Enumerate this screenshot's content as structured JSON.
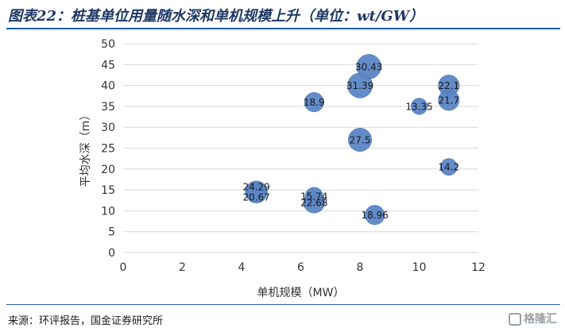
{
  "title": "图表22：桩基单位用量随水深和单机规模上升（单位：wt/GW）",
  "source": "来源：环评报告，国金证券研究所",
  "watermark": "格隆汇",
  "colors": {
    "bubble": "#5b86c5",
    "grid": "#d9d9d9",
    "title": "#1f3864",
    "rule": "#1f5fa6"
  },
  "chart_data": {
    "type": "scatter",
    "xlabel": "单机规模（MW）",
    "ylabel": "平均水深（m）",
    "xlim": [
      0,
      12
    ],
    "ylim": [
      0,
      50
    ],
    "x_ticks": [
      "0",
      "2",
      "4",
      "6",
      "8",
      "10",
      "12"
    ],
    "y_ticks": [
      "0",
      "5",
      "10",
      "15",
      "20",
      "25",
      "30",
      "35",
      "40",
      "45",
      "50"
    ],
    "grid": "horizontal",
    "points": [
      {
        "x": 8.3,
        "y": 44.5,
        "size": 30.43,
        "label": "30.43"
      },
      {
        "x": 8.0,
        "y": 40.0,
        "size": 31.39,
        "label": "31.39"
      },
      {
        "x": 11.0,
        "y": 40.0,
        "size": 22.1,
        "label": "22.1"
      },
      {
        "x": 11.0,
        "y": 36.5,
        "size": 21.7,
        "label": "21.7"
      },
      {
        "x": 6.45,
        "y": 36.0,
        "size": 18.9,
        "label": "18.9"
      },
      {
        "x": 10.0,
        "y": 35.0,
        "size": 13.35,
        "label": "13.35"
      },
      {
        "x": 8.0,
        "y": 27.0,
        "size": 27.5,
        "label": "27.5"
      },
      {
        "x": 11.0,
        "y": 20.5,
        "size": 14.2,
        "label": "14.2"
      },
      {
        "x": 4.5,
        "y": 14.5,
        "size": 24.29,
        "label": "24.29"
      },
      {
        "x": 4.5,
        "y": 14.5,
        "size": 20.67,
        "label": "20.67"
      },
      {
        "x": 6.45,
        "y": 13.5,
        "size": 15.74,
        "label": "15.74"
      },
      {
        "x": 6.45,
        "y": 12.0,
        "size": 22.68,
        "label": "22.68"
      },
      {
        "x": 8.5,
        "y": 9.0,
        "size": 18.96,
        "label": "18.96"
      }
    ]
  }
}
